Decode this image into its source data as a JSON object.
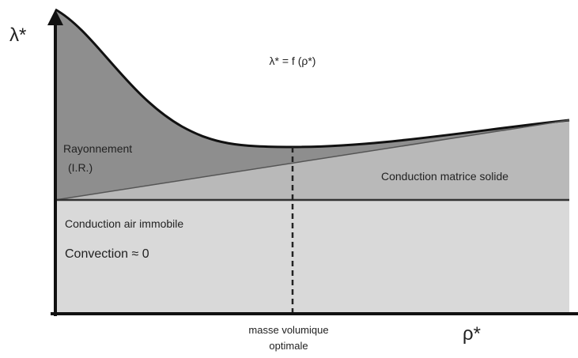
{
  "axes": {
    "y_label": "λ*",
    "x_label": "ρ*"
  },
  "formula": "λ* = f (ρ*)",
  "regions": {
    "radiation": [
      "Rayonnement",
      "(I.R.)"
    ],
    "solid": "Conduction matrice solide",
    "air": "Conduction air immobile",
    "convection": "Convection ≈ 0"
  },
  "optimum": [
    "masse volumique",
    "optimale"
  ]
}
